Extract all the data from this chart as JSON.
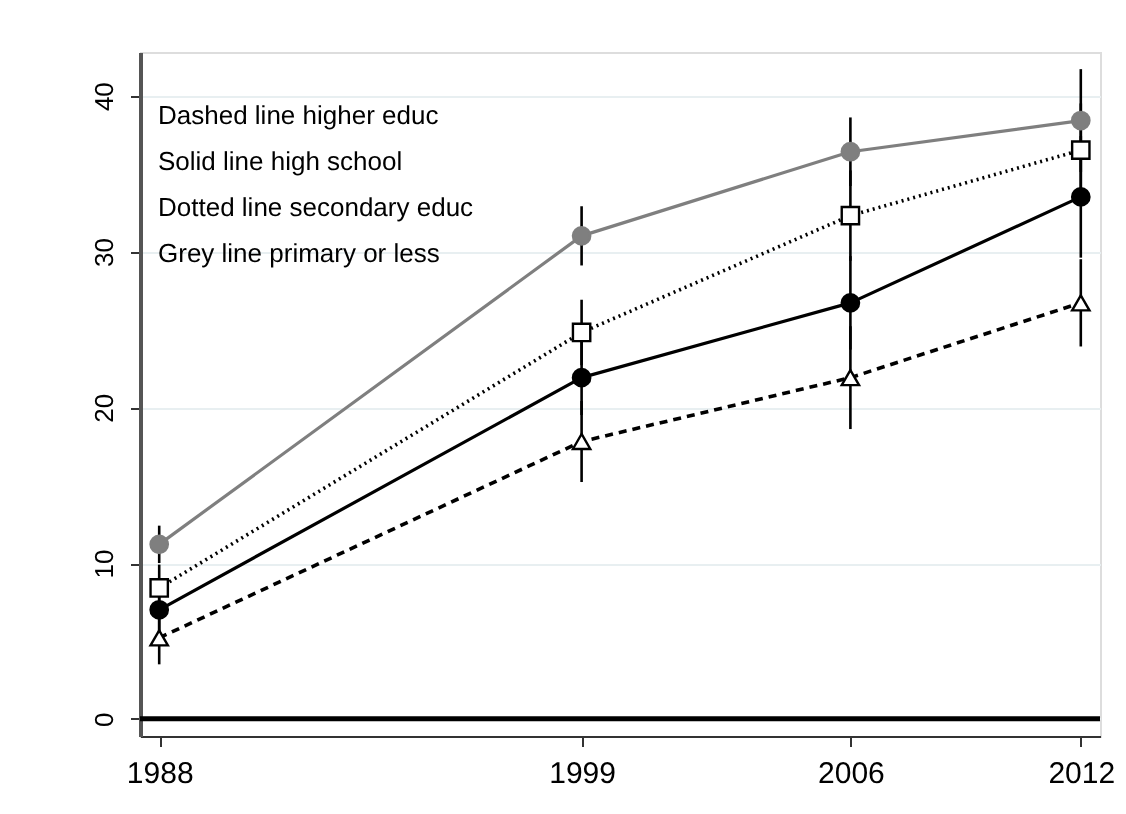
{
  "chart_data": {
    "type": "line",
    "x": [
      1988,
      1999,
      2006,
      2012
    ],
    "series": [
      {
        "color": "#000000",
        "line_style": "dashed",
        "marker": "triangle",
        "values": [
          5.2,
          17.8,
          21.9,
          26.7
        ],
        "errors": [
          1.7,
          2.6,
          3.3,
          2.8
        ]
      },
      {
        "color": "#000000",
        "line_style": "solid",
        "marker": "circle",
        "values": [
          7.0,
          21.9,
          26.7,
          33.5
        ],
        "errors": [
          1.6,
          2.4,
          3.0,
          3.9
        ]
      },
      {
        "color": "#000000",
        "line_style": "dotted",
        "marker": "square",
        "values": [
          8.4,
          24.8,
          32.3,
          36.5
        ],
        "errors": [
          1.5,
          2.1,
          2.9,
          3.0
        ]
      },
      {
        "color": "#7f7f7f",
        "line_style": "solid",
        "marker": "circle",
        "values": [
          11.2,
          31.0,
          36.4,
          38.4
        ],
        "errors": [
          1.2,
          1.9,
          2.2,
          3.3
        ]
      }
    ],
    "xlim": [
      1987.5,
      2012.5
    ],
    "xticks": [
      1988,
      1999,
      2006,
      2012
    ],
    "ylim": [
      -1.1,
      42.8
    ],
    "yticks": [
      0,
      10,
      20,
      30,
      40
    ],
    "grid": "y",
    "ref_lines": [
      {
        "axis": "y",
        "value": 0,
        "color": "#000000"
      }
    ],
    "annotations": [
      "Dashed line higher educ",
      "Solid line high school",
      "Dotted line secondary educ",
      "Grey line primary or less"
    ]
  }
}
